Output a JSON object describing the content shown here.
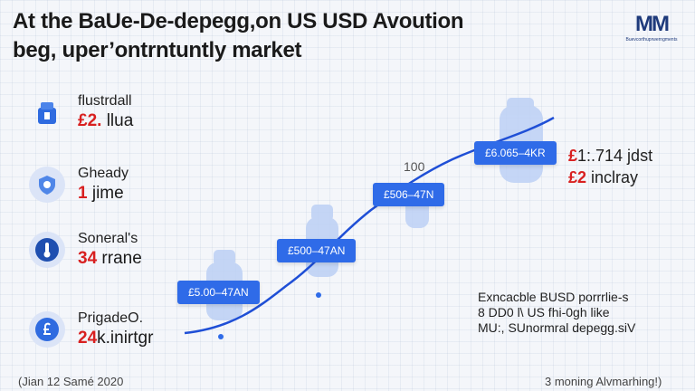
{
  "title": {
    "line1": "At the BaUe-De-depegg,on US USD Avoution",
    "line2": "beg, uper’ontrntuntly market"
  },
  "logo": {
    "mark": "MM",
    "caption": "Buevcorthuprwerngments"
  },
  "sidebar": {
    "items": [
      {
        "label": "flustrdall",
        "value_num": "£2.",
        "value_rest": " llua",
        "icon": "building-icon"
      },
      {
        "label": "Gheady",
        "value_num": "1",
        "value_rest": " jime",
        "icon": "shield-icon"
      },
      {
        "label": "Soneral's",
        "value_num": "34",
        "value_rest": " rrane",
        "icon": "thermometer-icon"
      },
      {
        "label": "PrigadeO.",
        "value_num": "24",
        "value_rest": "k.inirtgr",
        "icon": "pound-icon"
      }
    ]
  },
  "chart": {
    "flags": [
      "£5.00–47AN",
      "£500–47AN",
      "£506–47N",
      "£6.065–4KR"
    ],
    "bubble_label": "100"
  },
  "right_stat": {
    "line1_num": "£",
    "line1_rest": "1:.714 jdst",
    "line2_num": "£2",
    "line2_rest": " inclray"
  },
  "note": {
    "line1": "Exncacble BUSD porrrlie-s",
    "line2": "8 DD0 l\\ US fhi-0gh like",
    "line3": "MU:, SUnormral depegg.siV"
  },
  "footer": {
    "left": "(Jian 12 Samé 2020",
    "right": "3 moning Alvmarhing!)"
  },
  "colors": {
    "accent": "#2f6be8",
    "highlight": "#d82020",
    "line": "#1f4fd6"
  }
}
